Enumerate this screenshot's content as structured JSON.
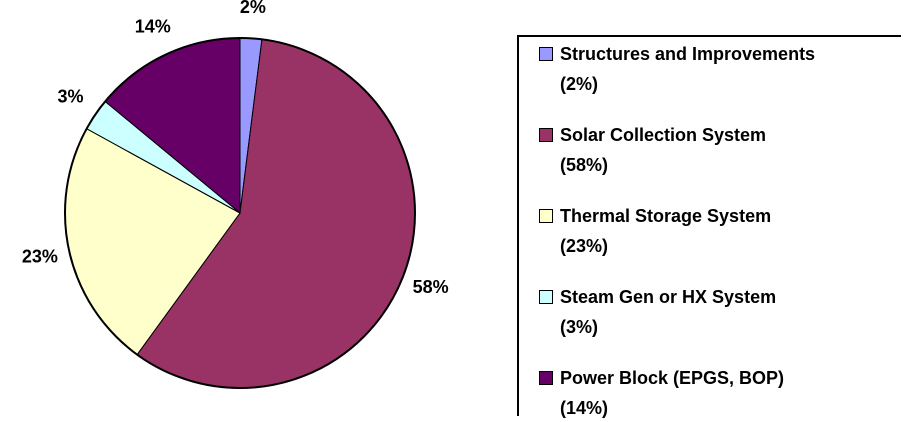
{
  "chart_data": {
    "type": "pie",
    "categories": [
      "Structures and Improvements",
      "Solar Collection System",
      "Thermal Storage System",
      "Steam Gen or HX System",
      "Power Block (EPGS, BOP)"
    ],
    "values": [
      2,
      58,
      23,
      3,
      14
    ],
    "value_labels": [
      "2%",
      "58%",
      "23%",
      "3%",
      "14%"
    ],
    "legend_value_labels": [
      "(2%)",
      "(58%)",
      "(23%)",
      "(3%)",
      "(14%)"
    ],
    "colors": [
      "#9999ff",
      "#993366",
      "#ffffcc",
      "#ccffff",
      "#660066"
    ]
  }
}
